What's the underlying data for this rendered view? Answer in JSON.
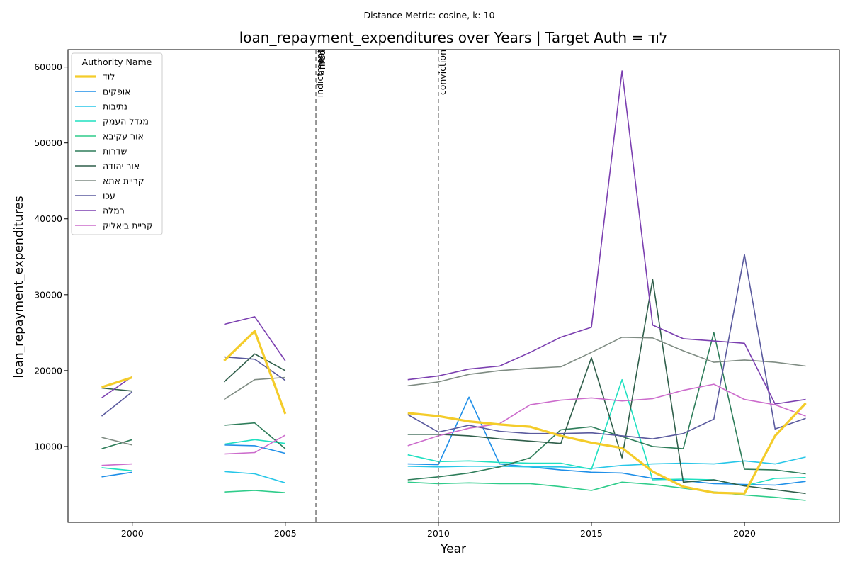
{
  "chart_data": {
    "type": "line",
    "suptitle": "Distance Metric: cosine, k: 10",
    "title": "loan_repayment_expenditures over Years | Target Auth = לוד",
    "xlabel": "Year",
    "ylabel": "loan_repayment_expenditures",
    "xlim": [
      1997.9,
      2023.1
    ],
    "ylim": [
      0,
      62300
    ],
    "xticks": [
      2000,
      2005,
      2010,
      2015,
      2020
    ],
    "yticks": [
      10000,
      20000,
      30000,
      40000,
      50000,
      60000
    ],
    "legend": {
      "title": "Authority Name",
      "placement": "top-left"
    },
    "events": [
      {
        "x": 2006,
        "label": "indictment"
      },
      {
        "x": 2006,
        "label": "arrest"
      },
      {
        "x": 2006,
        "label": "fired"
      },
      {
        "x": 2010,
        "label": "conviction"
      }
    ],
    "series": [
      {
        "name": "לוד",
        "color": "#f4cc2a",
        "width": 3.2,
        "points": [
          [
            1999,
            17800
          ],
          [
            2000,
            19100
          ],
          [
            2003,
            21300
          ],
          [
            2004,
            25200
          ],
          [
            2005,
            14300
          ],
          [
            2009,
            14400
          ],
          [
            2010,
            14000
          ],
          [
            2011,
            13300
          ],
          [
            2012,
            12900
          ],
          [
            2013,
            12600
          ],
          [
            2014,
            11400
          ],
          [
            2015,
            10500
          ],
          [
            2016,
            9800
          ],
          [
            2017,
            6700
          ],
          [
            2018,
            4700
          ],
          [
            2019,
            3900
          ],
          [
            2020,
            3800
          ],
          [
            2021,
            11400
          ],
          [
            2022,
            15700
          ]
        ]
      },
      {
        "name": "אופקים",
        "color": "#1f8fe8",
        "width": 1.6,
        "points": [
          [
            1999,
            6000
          ],
          [
            2000,
            6600
          ],
          [
            2003,
            10200
          ],
          [
            2004,
            10100
          ],
          [
            2005,
            9100
          ],
          [
            2009,
            7700
          ],
          [
            2010,
            7600
          ],
          [
            2011,
            16500
          ],
          [
            2012,
            7700
          ],
          [
            2013,
            7300
          ],
          [
            2014,
            6900
          ],
          [
            2015,
            6600
          ],
          [
            2016,
            6500
          ],
          [
            2017,
            5800
          ],
          [
            2018,
            5500
          ],
          [
            2019,
            5100
          ],
          [
            2020,
            5000
          ],
          [
            2021,
            4900
          ],
          [
            2022,
            5400
          ]
        ]
      },
      {
        "name": "נתיבות",
        "color": "#26c6e8",
        "width": 1.6,
        "points": [
          [
            2003,
            6700
          ],
          [
            2004,
            6400
          ],
          [
            2005,
            5200
          ],
          [
            2009,
            7400
          ],
          [
            2010,
            7300
          ],
          [
            2011,
            7400
          ],
          [
            2012,
            7400
          ],
          [
            2013,
            7300
          ],
          [
            2014,
            7300
          ],
          [
            2015,
            7100
          ],
          [
            2016,
            7500
          ],
          [
            2017,
            7700
          ],
          [
            2018,
            7800
          ],
          [
            2019,
            7700
          ],
          [
            2020,
            8100
          ],
          [
            2021,
            7700
          ],
          [
            2022,
            8600
          ]
        ]
      },
      {
        "name": "מגדל העמק",
        "color": "#1ee0c0",
        "width": 1.6,
        "points": [
          [
            1999,
            7200
          ],
          [
            2000,
            6800
          ],
          [
            2003,
            10300
          ],
          [
            2004,
            10900
          ],
          [
            2005,
            10400
          ],
          [
            2009,
            8900
          ],
          [
            2010,
            8000
          ],
          [
            2011,
            8100
          ],
          [
            2012,
            7900
          ],
          [
            2013,
            7800
          ],
          [
            2014,
            7800
          ],
          [
            2015,
            7000
          ],
          [
            2016,
            18800
          ],
          [
            2017,
            5600
          ],
          [
            2018,
            5700
          ],
          [
            2019,
            5600
          ],
          [
            2020,
            4800
          ],
          [
            2021,
            5800
          ],
          [
            2022,
            5900
          ]
        ]
      },
      {
        "name": "אור עקיבא",
        "color": "#2ecc8a",
        "width": 1.6,
        "points": [
          [
            2003,
            4000
          ],
          [
            2004,
            4200
          ],
          [
            2005,
            3900
          ],
          [
            2009,
            5300
          ],
          [
            2010,
            5100
          ],
          [
            2011,
            5200
          ],
          [
            2012,
            5100
          ],
          [
            2013,
            5100
          ],
          [
            2014,
            4700
          ],
          [
            2015,
            4200
          ],
          [
            2016,
            5300
          ],
          [
            2017,
            5000
          ],
          [
            2018,
            4500
          ],
          [
            2019,
            4000
          ],
          [
            2020,
            3600
          ],
          [
            2021,
            3300
          ],
          [
            2022,
            2900
          ]
        ]
      },
      {
        "name": "שדרות",
        "color": "#2e7d5a",
        "width": 1.6,
        "points": [
          [
            1999,
            9700
          ],
          [
            2000,
            10900
          ],
          [
            2003,
            12800
          ],
          [
            2004,
            13100
          ],
          [
            2005,
            9700
          ],
          [
            2009,
            5600
          ],
          [
            2010,
            6000
          ],
          [
            2011,
            6500
          ],
          [
            2012,
            7300
          ],
          [
            2013,
            8500
          ],
          [
            2014,
            12200
          ],
          [
            2015,
            12600
          ],
          [
            2016,
            11300
          ],
          [
            2017,
            10000
          ],
          [
            2018,
            9700
          ],
          [
            2019,
            25000
          ],
          [
            2020,
            7000
          ],
          [
            2021,
            6900
          ],
          [
            2022,
            6400
          ]
        ]
      },
      {
        "name": "אור יהודה",
        "color": "#2f5e4a",
        "width": 1.6,
        "points": [
          [
            1999,
            17700
          ],
          [
            2000,
            17300
          ],
          [
            2003,
            18500
          ],
          [
            2004,
            22200
          ],
          [
            2005,
            20000
          ],
          [
            2009,
            11600
          ],
          [
            2010,
            11600
          ],
          [
            2011,
            11400
          ],
          [
            2012,
            11000
          ],
          [
            2013,
            10700
          ],
          [
            2014,
            10400
          ],
          [
            2015,
            21700
          ],
          [
            2016,
            8500
          ],
          [
            2017,
            32000
          ],
          [
            2018,
            5300
          ],
          [
            2019,
            5600
          ],
          [
            2020,
            4800
          ],
          [
            2021,
            4300
          ],
          [
            2022,
            3800
          ]
        ]
      },
      {
        "name": "קריית אתא",
        "color": "#7f8c83",
        "width": 1.6,
        "points": [
          [
            1999,
            11200
          ],
          [
            2000,
            10200
          ],
          [
            2003,
            16200
          ],
          [
            2004,
            18800
          ],
          [
            2005,
            19100
          ],
          [
            2009,
            18000
          ],
          [
            2010,
            18500
          ],
          [
            2011,
            19500
          ],
          [
            2012,
            20000
          ],
          [
            2013,
            20300
          ],
          [
            2014,
            20500
          ],
          [
            2015,
            22400
          ],
          [
            2016,
            24400
          ],
          [
            2017,
            24300
          ],
          [
            2018,
            22600
          ],
          [
            2019,
            21100
          ],
          [
            2020,
            21400
          ],
          [
            2021,
            21100
          ],
          [
            2022,
            20600
          ]
        ]
      },
      {
        "name": "עכו",
        "color": "#5a5a9e",
        "width": 1.6,
        "points": [
          [
            1999,
            14000
          ],
          [
            2000,
            17200
          ],
          [
            2003,
            21800
          ],
          [
            2004,
            21500
          ],
          [
            2005,
            18700
          ],
          [
            2009,
            14200
          ],
          [
            2010,
            11900
          ],
          [
            2011,
            12800
          ],
          [
            2012,
            12000
          ],
          [
            2013,
            11700
          ],
          [
            2014,
            11700
          ],
          [
            2015,
            11800
          ],
          [
            2016,
            11400
          ],
          [
            2017,
            11000
          ],
          [
            2018,
            11700
          ],
          [
            2019,
            13600
          ],
          [
            2020,
            35300
          ],
          [
            2021,
            12300
          ],
          [
            2022,
            13700
          ]
        ]
      },
      {
        "name": "רמלה",
        "color": "#7b3fb0",
        "width": 1.6,
        "points": [
          [
            1999,
            16400
          ],
          [
            2000,
            19200
          ],
          [
            2003,
            26100
          ],
          [
            2004,
            27100
          ],
          [
            2005,
            21300
          ],
          [
            2009,
            18800
          ],
          [
            2010,
            19300
          ],
          [
            2011,
            20200
          ],
          [
            2012,
            20600
          ],
          [
            2013,
            22400
          ],
          [
            2014,
            24400
          ],
          [
            2015,
            25700
          ],
          [
            2016,
            59500
          ],
          [
            2017,
            26000
          ],
          [
            2018,
            24200
          ],
          [
            2019,
            23900
          ],
          [
            2020,
            23600
          ],
          [
            2021,
            15600
          ],
          [
            2022,
            16200
          ]
        ]
      },
      {
        "name": "קריית ביאליק",
        "color": "#cc6ccc",
        "width": 1.6,
        "points": [
          [
            1999,
            7500
          ],
          [
            2000,
            7700
          ],
          [
            2003,
            9000
          ],
          [
            2004,
            9200
          ],
          [
            2005,
            11500
          ],
          [
            2009,
            10100
          ],
          [
            2010,
            11400
          ],
          [
            2011,
            12400
          ],
          [
            2012,
            13000
          ],
          [
            2013,
            15500
          ],
          [
            2014,
            16100
          ],
          [
            2015,
            16400
          ],
          [
            2016,
            16000
          ],
          [
            2017,
            16300
          ],
          [
            2018,
            17400
          ],
          [
            2019,
            18200
          ],
          [
            2020,
            16200
          ],
          [
            2021,
            15500
          ],
          [
            2022,
            14000
          ]
        ]
      }
    ]
  }
}
